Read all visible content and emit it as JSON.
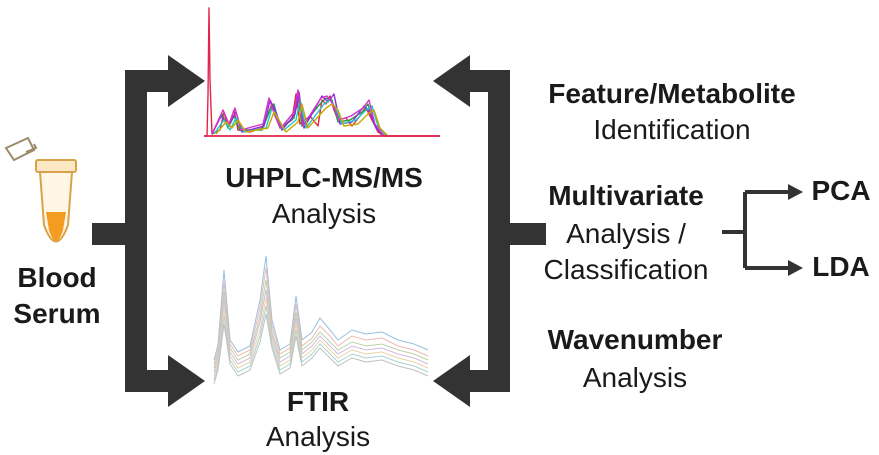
{
  "sample": {
    "line1": "Blood",
    "line2": "Serum",
    "tube_color": "#f39c1f"
  },
  "uhplc": {
    "title": "UHPLC-MS/MS",
    "subtitle": "Analysis"
  },
  "ftir": {
    "title": "FTIR",
    "subtitle": "Analysis"
  },
  "feature": {
    "title": "Feature/Metabolite",
    "subtitle": "Identification"
  },
  "multivariate": {
    "title": "Multivariate",
    "line2": "Analysis /",
    "line3": "Classification"
  },
  "wavenumber": {
    "title": "Wavenumber",
    "subtitle": "Analysis"
  },
  "outputs": {
    "pca": "PCA",
    "lda": "LDA"
  },
  "colors": {
    "arrow": "#333333",
    "accent": "#f39c1f"
  }
}
